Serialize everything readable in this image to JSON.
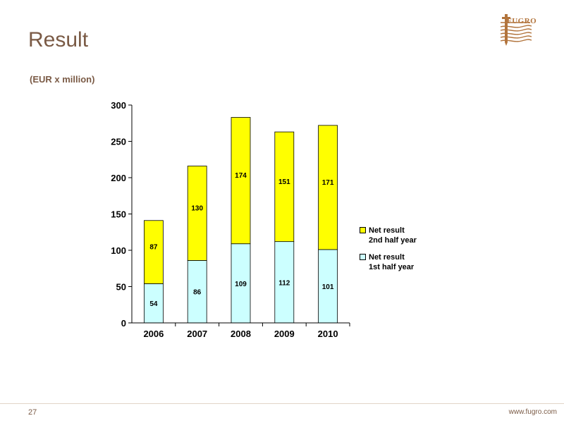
{
  "header": {
    "title": "Result",
    "subtitle": "(EUR x million)",
    "logo_text": "FUGRO"
  },
  "footer": {
    "page_number": "27",
    "url": "www.fugro.com"
  },
  "colors": {
    "brand": "#7a5a45",
    "logo": "#b2743c",
    "first_half": "#ccffff",
    "second_half": "#ffff00"
  },
  "chart_data": {
    "type": "bar",
    "stacked": true,
    "categories": [
      "2006",
      "2007",
      "2008",
      "2009",
      "2010"
    ],
    "series": [
      {
        "name": "Net result\n1st half year",
        "color": "#ccffff",
        "values": [
          54,
          86,
          109,
          112,
          101
        ]
      },
      {
        "name": "Net result\n2nd half year",
        "color": "#ffff00",
        "values": [
          87,
          130,
          174,
          151,
          171
        ]
      }
    ],
    "ylim": [
      0,
      300
    ],
    "yticks": [
      0,
      50,
      100,
      150,
      200,
      250,
      300
    ],
    "grid": false,
    "legend_position": "right"
  }
}
